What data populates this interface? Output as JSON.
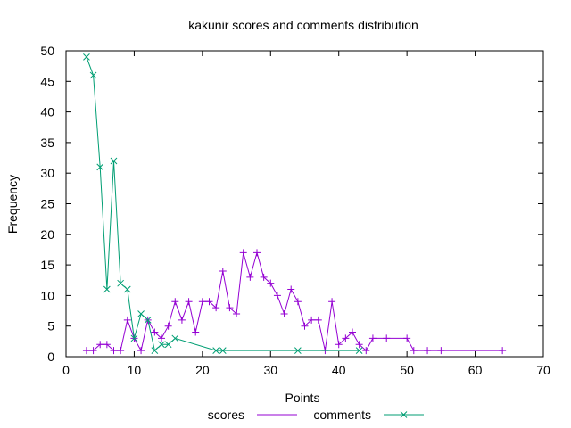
{
  "chart_data": {
    "type": "line",
    "title": "kakunir scores and comments distribution",
    "xlabel": "Points",
    "ylabel": "Frequency",
    "xlim": [
      0,
      70
    ],
    "ylim": [
      0,
      50
    ],
    "xticks": [
      "0",
      "10",
      "20",
      "30",
      "40",
      "50",
      "60",
      "70"
    ],
    "yticks": [
      "0",
      "5",
      "10",
      "15",
      "20",
      "25",
      "30",
      "35",
      "40",
      "45",
      "50"
    ],
    "grid": false,
    "legend_position": "bottom-center",
    "series": [
      {
        "name": "scores",
        "color": "#9400d3",
        "marker": "plus",
        "points": [
          [
            3,
            1
          ],
          [
            4,
            1
          ],
          [
            5,
            2
          ],
          [
            6,
            2
          ],
          [
            7,
            1
          ],
          [
            8,
            1
          ],
          [
            9,
            6
          ],
          [
            10,
            3
          ],
          [
            11,
            1
          ],
          [
            12,
            6
          ],
          [
            13,
            4
          ],
          [
            14,
            3
          ],
          [
            15,
            5
          ],
          [
            16,
            9
          ],
          [
            17,
            6
          ],
          [
            18,
            9
          ],
          [
            19,
            4
          ],
          [
            20,
            9
          ],
          [
            21,
            9
          ],
          [
            22,
            8
          ],
          [
            23,
            14
          ],
          [
            24,
            8
          ],
          [
            25,
            7
          ],
          [
            26,
            17
          ],
          [
            27,
            13
          ],
          [
            28,
            17
          ],
          [
            29,
            13
          ],
          [
            30,
            12
          ],
          [
            31,
            10
          ],
          [
            32,
            7
          ],
          [
            33,
            11
          ],
          [
            34,
            9
          ],
          [
            35,
            5
          ],
          [
            36,
            6
          ],
          [
            37,
            6
          ],
          [
            38,
            1
          ],
          [
            39,
            9
          ],
          [
            40,
            2
          ],
          [
            41,
            3
          ],
          [
            42,
            4
          ],
          [
            43,
            2
          ],
          [
            44,
            1
          ],
          [
            45,
            3
          ],
          [
            47,
            3
          ],
          [
            50,
            3
          ],
          [
            51,
            1
          ],
          [
            53,
            1
          ],
          [
            55,
            1
          ],
          [
            64,
            1
          ]
        ]
      },
      {
        "name": "comments",
        "color": "#009e73",
        "marker": "cross",
        "points": [
          [
            3,
            49
          ],
          [
            4,
            46
          ],
          [
            5,
            31
          ],
          [
            6,
            11
          ],
          [
            7,
            32
          ],
          [
            8,
            12
          ],
          [
            9,
            11
          ],
          [
            10,
            3
          ],
          [
            11,
            7
          ],
          [
            12,
            6
          ],
          [
            13,
            1
          ],
          [
            14,
            2
          ],
          [
            15,
            2
          ],
          [
            16,
            3
          ],
          [
            22,
            1
          ],
          [
            23,
            1
          ],
          [
            34,
            1
          ],
          [
            43,
            1
          ]
        ]
      }
    ]
  }
}
